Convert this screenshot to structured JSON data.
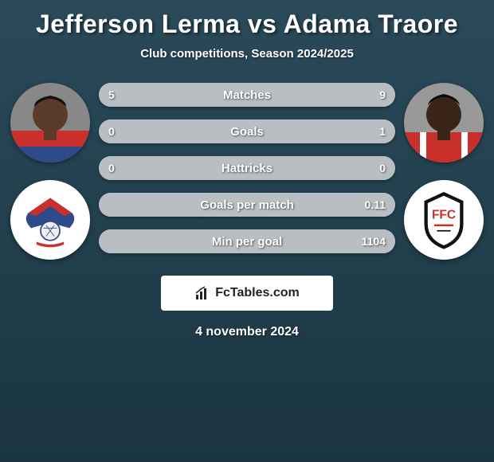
{
  "title": "Jefferson Lerma vs Adama Traore",
  "subtitle": "Club competitions, Season 2024/2025",
  "date": "4 november 2024",
  "brand": "FcTables.com",
  "colors": {
    "left_primary": "#c9302c",
    "left_secondary": "#2e4a8a",
    "right_primary": "#ffffff",
    "right_secondary": "#c9302c",
    "bar_bg": "#d5dadd",
    "bar_left": "#b8bec2",
    "bar_right": "#b8bec2"
  },
  "player_left": {
    "name": "Jefferson Lerma",
    "skin": "#5a3a2a",
    "shirt_top": "#c9302c",
    "shirt_bottom": "#2e4a8a"
  },
  "player_right": {
    "name": "Adama Traore",
    "skin": "#3a2418",
    "shirt": "#c9302c"
  },
  "club_left": {
    "name": "Crystal Palace",
    "bg": "#ffffff",
    "wing": "#2e4a8a",
    "accent": "#c9302c",
    "ball": "#f0f0f0"
  },
  "club_right": {
    "name": "Fulham",
    "bg": "#ffffff",
    "shield_border": "#111111",
    "shield_fill": "#ffffff",
    "accent": "#c9302c"
  },
  "stats": [
    {
      "label": "Matches",
      "left_val": "5",
      "right_val": "9",
      "left_pct": 18,
      "right_pct": 82
    },
    {
      "label": "Goals",
      "left_val": "0",
      "right_val": "1",
      "left_pct": 8,
      "right_pct": 92
    },
    {
      "label": "Hattricks",
      "left_val": "0",
      "right_val": "0",
      "left_pct": 50,
      "right_pct": 50
    },
    {
      "label": "Goals per match",
      "left_val": "",
      "right_val": "0.11",
      "left_pct": 8,
      "right_pct": 92
    },
    {
      "label": "Min per goal",
      "left_val": "",
      "right_val": "1104",
      "left_pct": 8,
      "right_pct": 92
    }
  ]
}
